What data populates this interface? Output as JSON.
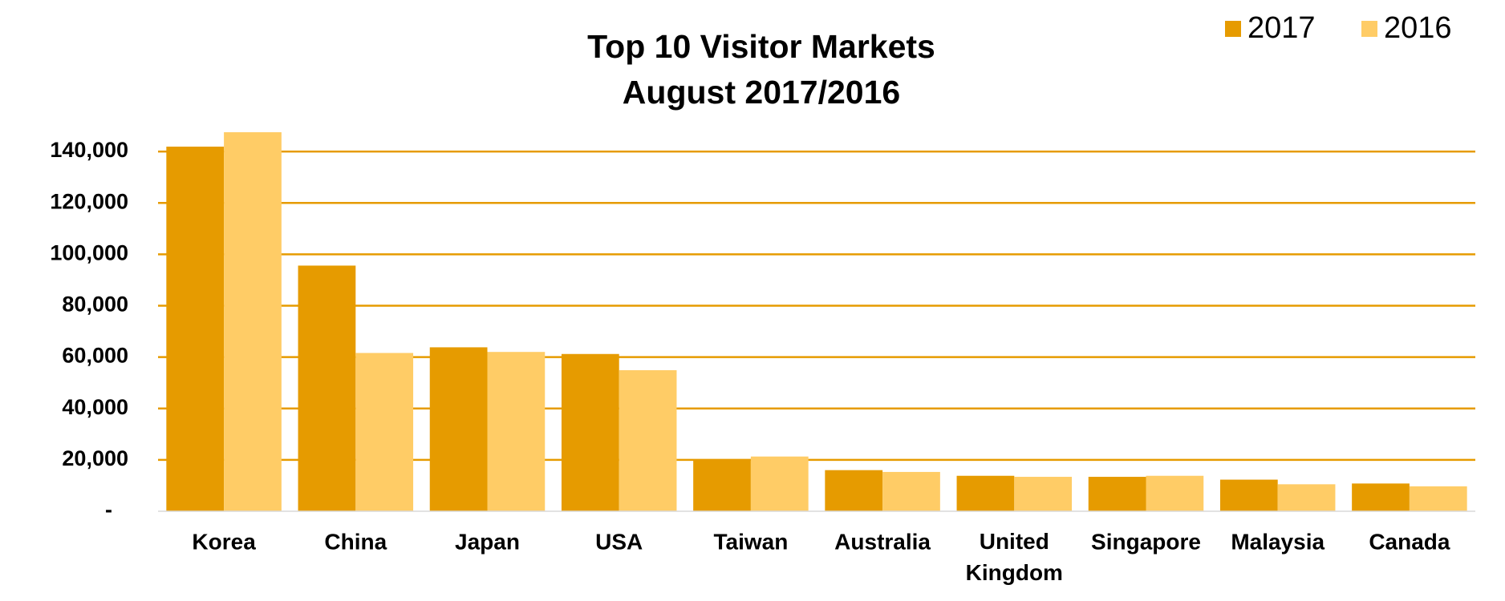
{
  "chart_data": {
    "type": "bar",
    "title": "Top 10 Visitor Markets",
    "subtitle": "August 2017/2016",
    "categories": [
      "Korea",
      "China",
      "Japan",
      "USA",
      "Taiwan",
      "Australia",
      "United Kingdom",
      "Singapore",
      "Malaysia",
      "Canada"
    ],
    "series": [
      {
        "name": "2017",
        "color": "#E69B00",
        "values": [
          141900,
          95600,
          63800,
          61200,
          20200,
          16000,
          13800,
          13400,
          12300,
          10800
        ]
      },
      {
        "name": "2016",
        "color": "#FFCC66",
        "values": [
          147500,
          61600,
          62000,
          54900,
          21300,
          15300,
          13400,
          13800,
          10500,
          9700
        ]
      }
    ],
    "ylim": [
      0,
      150000
    ],
    "yticks": [
      {
        "value": 0,
        "label": "-"
      },
      {
        "value": 20000,
        "label": "20,000"
      },
      {
        "value": 40000,
        "label": "40,000"
      },
      {
        "value": 60000,
        "label": "60,000"
      },
      {
        "value": 80000,
        "label": "80,000"
      },
      {
        "value": 100000,
        "label": "100,000"
      },
      {
        "value": 120000,
        "label": "120,000"
      },
      {
        "value": 140000,
        "label": "140,000"
      }
    ],
    "grid": true,
    "grid_color": "#E69B00",
    "legend": "top-right"
  }
}
